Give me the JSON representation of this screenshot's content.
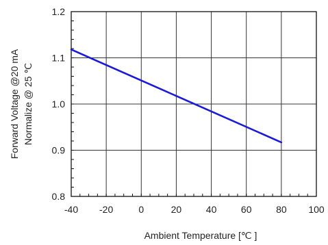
{
  "chart_data": {
    "type": "line",
    "xlabel": "Ambient Temperature [℃ ]",
    "ylabel_line1": "Forward Voltage @20 mA",
    "ylabel_line2": "Normalize @ 25 ℃",
    "xlim": [
      -40,
      100
    ],
    "ylim": [
      0.8,
      1.2
    ],
    "x_ticks": [
      -40,
      -20,
      0,
      20,
      40,
      60,
      80,
      100
    ],
    "y_ticks": [
      0.8,
      0.9,
      1.0,
      1.1,
      1.2
    ],
    "y_tick_labels": [
      "0.8",
      "0.9",
      "1.0",
      "1.1",
      "1.2"
    ],
    "grid": true,
    "series": [
      {
        "color": "#1a1adb",
        "x": [
          -40,
          80
        ],
        "y": [
          1.118,
          0.917
        ]
      }
    ]
  }
}
